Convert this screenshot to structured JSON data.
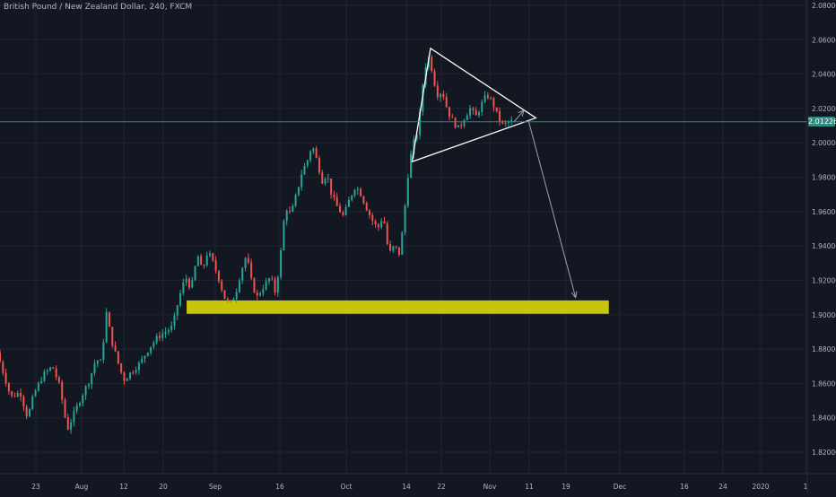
{
  "header": {
    "title": "British Pound / New Zealand Dollar, 240, FXCM"
  },
  "colors": {
    "background": "#131722",
    "grid": "#1f2430",
    "axis_text": "#b2b5be",
    "up_candle": "#26a69a",
    "down_candle": "#ef5350",
    "price_line": "#2f8a82",
    "zone": "#c8c40b",
    "annotation": "#ffffff",
    "arrow": "#9aa4b5"
  },
  "chart_data": {
    "type": "candlestick",
    "title": "British Pound / New Zealand Dollar, 240, FXCM",
    "symbol": "GBPNZD",
    "interval": "240",
    "source": "FXCM",
    "y_axis": {
      "position": "right",
      "range": [
        1.81,
        2.085
      ],
      "ticks": [
        "2.08000",
        "2.06000",
        "2.04000",
        "2.02000",
        "2.00000",
        "1.98000",
        "1.96000",
        "1.94000",
        "1.92000",
        "1.90000",
        "1.88000",
        "1.86000",
        "1.84000",
        "1.82000"
      ]
    },
    "x_axis": {
      "ticks": [
        "23",
        "Aug",
        "12",
        "20",
        "Sep",
        "16",
        "Oct",
        "14",
        "22",
        "Nov",
        "11",
        "19",
        "Dec",
        "16",
        "24",
        "2020",
        "1"
      ]
    },
    "grid": true,
    "last_price": "2.01226",
    "price_path": [
      {
        "t": 0.0,
        "p": 1.878
      },
      {
        "t": 0.7,
        "p": 1.866
      },
      {
        "t": 1.5,
        "p": 1.852
      },
      {
        "t": 2.5,
        "p": 1.855
      },
      {
        "t": 3.3,
        "p": 1.84
      },
      {
        "t": 4.0,
        "p": 1.854
      },
      {
        "t": 5.0,
        "p": 1.865
      },
      {
        "t": 6.0,
        "p": 1.87
      },
      {
        "t": 6.8,
        "p": 1.858
      },
      {
        "t": 7.6,
        "p": 1.833
      },
      {
        "t": 8.3,
        "p": 1.842
      },
      {
        "t": 9.1,
        "p": 1.852
      },
      {
        "t": 10.0,
        "p": 1.862
      },
      {
        "t": 10.7,
        "p": 1.874
      },
      {
        "t": 11.3,
        "p": 1.872
      },
      {
        "t": 11.8,
        "p": 1.902
      },
      {
        "t": 12.4,
        "p": 1.885
      },
      {
        "t": 13.1,
        "p": 1.872
      },
      {
        "t": 13.7,
        "p": 1.862
      },
      {
        "t": 14.6,
        "p": 1.867
      },
      {
        "t": 15.5,
        "p": 1.872
      },
      {
        "t": 16.5,
        "p": 1.881
      },
      {
        "t": 17.4,
        "p": 1.887
      },
      {
        "t": 18.2,
        "p": 1.89
      },
      {
        "t": 19.0,
        "p": 1.893
      },
      {
        "t": 19.7,
        "p": 1.91
      },
      {
        "t": 20.4,
        "p": 1.922
      },
      {
        "t": 21.0,
        "p": 1.915
      },
      {
        "t": 21.7,
        "p": 1.935
      },
      {
        "t": 22.2,
        "p": 1.925
      },
      {
        "t": 22.8,
        "p": 1.937
      },
      {
        "t": 23.4,
        "p": 1.93
      },
      {
        "t": 24.0,
        "p": 1.921
      },
      {
        "t": 24.6,
        "p": 1.91
      },
      {
        "t": 25.2,
        "p": 1.906
      },
      {
        "t": 25.8,
        "p": 1.912
      },
      {
        "t": 26.4,
        "p": 1.925
      },
      {
        "t": 27.0,
        "p": 1.935
      },
      {
        "t": 27.5,
        "p": 1.92
      },
      {
        "t": 28.1,
        "p": 1.91
      },
      {
        "t": 28.8,
        "p": 1.916
      },
      {
        "t": 29.6,
        "p": 1.922
      },
      {
        "t": 30.1,
        "p": 1.913
      },
      {
        "t": 30.6,
        "p": 1.93
      },
      {
        "t": 31.2,
        "p": 1.963
      },
      {
        "t": 31.8,
        "p": 1.958
      },
      {
        "t": 32.4,
        "p": 1.97
      },
      {
        "t": 33.0,
        "p": 1.983
      },
      {
        "t": 33.6,
        "p": 1.99
      },
      {
        "t": 34.1,
        "p": 1.999
      },
      {
        "t": 34.6,
        "p": 1.99
      },
      {
        "t": 35.2,
        "p": 1.978
      },
      {
        "t": 35.7,
        "p": 1.982
      },
      {
        "t": 36.2,
        "p": 1.97
      },
      {
        "t": 36.8,
        "p": 1.963
      },
      {
        "t": 37.5,
        "p": 1.957
      },
      {
        "t": 38.2,
        "p": 1.968
      },
      {
        "t": 38.8,
        "p": 1.975
      },
      {
        "t": 39.4,
        "p": 1.97
      },
      {
        "t": 40.0,
        "p": 1.962
      },
      {
        "t": 40.6,
        "p": 1.955
      },
      {
        "t": 41.2,
        "p": 1.95
      },
      {
        "t": 41.8,
        "p": 1.958
      },
      {
        "t": 42.4,
        "p": 1.935
      },
      {
        "t": 43.0,
        "p": 1.94
      },
      {
        "t": 43.6,
        "p": 1.935
      },
      {
        "t": 44.1,
        "p": 1.96
      },
      {
        "t": 44.6,
        "p": 1.988
      },
      {
        "t": 45.1,
        "p": 2.0
      },
      {
        "t": 45.6,
        "p": 2.008
      },
      {
        "t": 46.1,
        "p": 2.035
      },
      {
        "t": 46.6,
        "p": 2.052
      },
      {
        "t": 47.1,
        "p": 2.042
      },
      {
        "t": 47.6,
        "p": 2.028
      },
      {
        "t": 48.2,
        "p": 2.03
      },
      {
        "t": 48.8,
        "p": 2.018
      },
      {
        "t": 49.4,
        "p": 2.012
      },
      {
        "t": 50.0,
        "p": 2.008
      },
      {
        "t": 50.6,
        "p": 2.015
      },
      {
        "t": 51.2,
        "p": 2.02
      },
      {
        "t": 51.8,
        "p": 2.015
      },
      {
        "t": 52.4,
        "p": 2.022
      },
      {
        "t": 53.0,
        "p": 2.028
      },
      {
        "t": 53.6,
        "p": 2.024
      },
      {
        "t": 54.2,
        "p": 2.015
      },
      {
        "t": 54.8,
        "p": 2.01
      },
      {
        "t": 55.4,
        "p": 2.0123
      }
    ],
    "pattern_triangle": [
      {
        "t": 46.6,
        "p": 2.055
      },
      {
        "t": 58.0,
        "p": 2.0145
      },
      {
        "t": 44.6,
        "p": 1.989
      }
    ],
    "small_arrow": {
      "from": {
        "t": 55.6,
        "p": 2.012
      },
      "to": {
        "t": 56.7,
        "p": 2.019
      }
    },
    "projection_arrow": {
      "from": {
        "t": 57.2,
        "p": 2.013
      },
      "to": {
        "t": 62.3,
        "p": 1.91
      }
    },
    "zone": {
      "t_start": 20.2,
      "t_end": 65.9,
      "p_low": 1.9005,
      "p_high": 1.9083
    }
  }
}
